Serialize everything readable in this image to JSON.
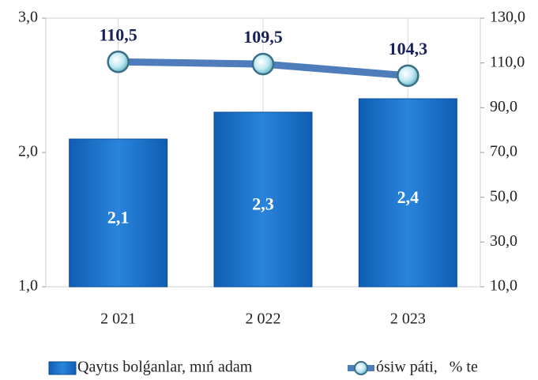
{
  "chart_data": {
    "type": "bar_line",
    "categories": [
      "2 021",
      "2 022",
      "2 023"
    ],
    "series": [
      {
        "name": "Qaytıs bolǵanlar, mıń adam",
        "type": "bar",
        "color": "#1b6fc8",
        "values": [
          2.1,
          2.3,
          2.4
        ],
        "value_labels": [
          "2,1",
          "2,3",
          "2,4"
        ]
      },
      {
        "name": "ósiw páti,   % te",
        "type": "line",
        "axis": "y2",
        "color": "#4f7cba",
        "values": [
          110.5,
          109.5,
          104.3
        ],
        "value_labels": [
          "110,5",
          "109,5",
          "104,3"
        ]
      }
    ],
    "ylim": [
      1.0,
      3.0
    ],
    "yticks": [
      {
        "value": 1.0,
        "label": "1,0"
      },
      {
        "value": 2.0,
        "label": "2,0"
      },
      {
        "value": 3.0,
        "label": "3,0"
      }
    ],
    "y2lim": [
      10.0,
      130.0
    ],
    "y2ticks": [
      {
        "value": 10,
        "label": "10,0"
      },
      {
        "value": 30,
        "label": "30,0"
      },
      {
        "value": 50,
        "label": "50,0"
      },
      {
        "value": 70,
        "label": "70,0"
      },
      {
        "value": 90,
        "label": "90,0"
      },
      {
        "value": 110,
        "label": "110,0"
      },
      {
        "value": 130,
        "label": "130,0"
      }
    ],
    "legend": "bottom"
  }
}
